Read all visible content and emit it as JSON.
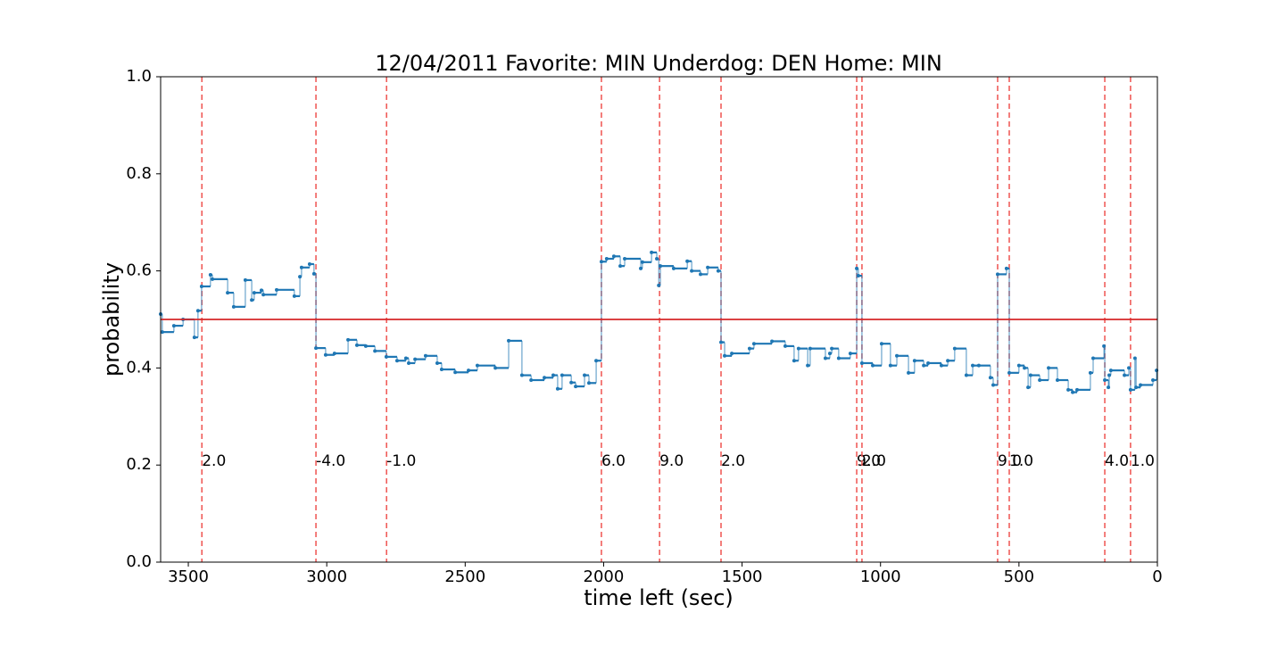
{
  "chart_data": {
    "type": "step",
    "title": "12/04/2011 Favorite: MIN Underdog: DEN Home: MIN",
    "xlabel": "time left (sec)",
    "ylabel": "probability",
    "xlim": [
      3600,
      0
    ],
    "ylim": [
      0,
      1
    ],
    "xticks": [
      3500,
      3000,
      2500,
      2000,
      1500,
      1000,
      500,
      0
    ],
    "yticks": [
      {
        "value": 0,
        "label": "0.0"
      },
      0.2,
      0.4,
      0.6,
      0.8,
      {
        "value": 1,
        "label": "1.0"
      }
    ],
    "color": "#1f77b4",
    "x": [
      3600,
      3594,
      3552,
      3519,
      3478,
      3465,
      3452,
      3420,
      3413,
      3358,
      3336,
      3294,
      3271,
      3262,
      3236,
      3229,
      3181,
      3117,
      3097,
      3091,
      3062,
      3046,
      3039,
      3004,
      2972,
      2923,
      2891,
      2859,
      2826,
      2785,
      2746,
      2714,
      2704,
      2681,
      2643,
      2601,
      2585,
      2536,
      2488,
      2456,
      2391,
      2343,
      2295,
      2262,
      2214,
      2182,
      2166,
      2150,
      2117,
      2101,
      2069,
      2053,
      2027,
      2008,
      1989,
      1963,
      1940,
      1924,
      1866,
      1860,
      1827,
      1808,
      1801,
      1795,
      1747,
      1698,
      1682,
      1650,
      1624,
      1586,
      1576,
      1563,
      1537,
      1473,
      1457,
      1392,
      1344,
      1312,
      1296,
      1263,
      1254,
      1199,
      1183,
      1176,
      1151,
      1109,
      1086,
      1080,
      1067,
      1028,
      996,
      964,
      941,
      899,
      877,
      844,
      828,
      780,
      757,
      732,
      690,
      667,
      645,
      603,
      593,
      577,
      545,
      535,
      500,
      480,
      467,
      458,
      425,
      393,
      361,
      322,
      306,
      290,
      242,
      232,
      193,
      190,
      177,
      174,
      168,
      119,
      103,
      97,
      81,
      77,
      61,
      16,
      3
    ],
    "values": [
      0.511,
      0.474,
      0.487,
      0.5,
      0.463,
      0.518,
      0.568,
      0.592,
      0.583,
      0.555,
      0.526,
      0.581,
      0.54,
      0.555,
      0.56,
      0.551,
      0.561,
      0.548,
      0.588,
      0.607,
      0.614,
      0.594,
      0.441,
      0.427,
      0.43,
      0.458,
      0.447,
      0.445,
      0.435,
      0.423,
      0.415,
      0.42,
      0.41,
      0.418,
      0.425,
      0.41,
      0.397,
      0.391,
      0.395,
      0.405,
      0.4,
      0.456,
      0.385,
      0.375,
      0.38,
      0.385,
      0.357,
      0.385,
      0.37,
      0.362,
      0.385,
      0.369,
      0.415,
      0.619,
      0.625,
      0.63,
      0.61,
      0.625,
      0.605,
      0.618,
      0.638,
      0.625,
      0.57,
      0.61,
      0.605,
      0.62,
      0.6,
      0.593,
      0.607,
      0.6,
      0.453,
      0.425,
      0.43,
      0.44,
      0.45,
      0.455,
      0.445,
      0.415,
      0.44,
      0.405,
      0.44,
      0.42,
      0.43,
      0.44,
      0.42,
      0.43,
      0.605,
      0.59,
      0.41,
      0.405,
      0.45,
      0.405,
      0.425,
      0.39,
      0.415,
      0.405,
      0.41,
      0.405,
      0.415,
      0.44,
      0.385,
      0.405,
      0.405,
      0.38,
      0.365,
      0.593,
      0.605,
      0.39,
      0.405,
      0.4,
      0.36,
      0.385,
      0.375,
      0.4,
      0.375,
      0.355,
      0.35,
      0.355,
      0.39,
      0.42,
      0.445,
      0.375,
      0.36,
      0.385,
      0.395,
      0.385,
      0.4,
      0.355,
      0.42,
      0.36,
      0.365,
      0.375,
      0.395
    ],
    "hline": {
      "y": 0.5,
      "color": "#d62728"
    },
    "vline_color": "#ef5350",
    "annotations": [
      {
        "x": 3451,
        "y": 0.2,
        "text": "2.0"
      },
      {
        "x": 3039,
        "y": 0.2,
        "text": "-4.0"
      },
      {
        "x": 2784,
        "y": 0.2,
        "text": "-1.0"
      },
      {
        "x": 2008,
        "y": 0.2,
        "text": "6.0"
      },
      {
        "x": 1798,
        "y": 0.2,
        "text": "9.0"
      },
      {
        "x": 1576,
        "y": 0.2,
        "text": "2.0"
      },
      {
        "x": 1086,
        "y": 0.2,
        "text": "9.0"
      },
      {
        "x": 1067,
        "y": 0.2,
        "text": "2.0"
      },
      {
        "x": 577,
        "y": 0.2,
        "text": "9.0"
      },
      {
        "x": 535,
        "y": 0.2,
        "text": "1.0"
      },
      {
        "x": 190,
        "y": 0.2,
        "text": "4.0"
      },
      {
        "x": 97,
        "y": 0.2,
        "text": "1.0"
      }
    ]
  }
}
